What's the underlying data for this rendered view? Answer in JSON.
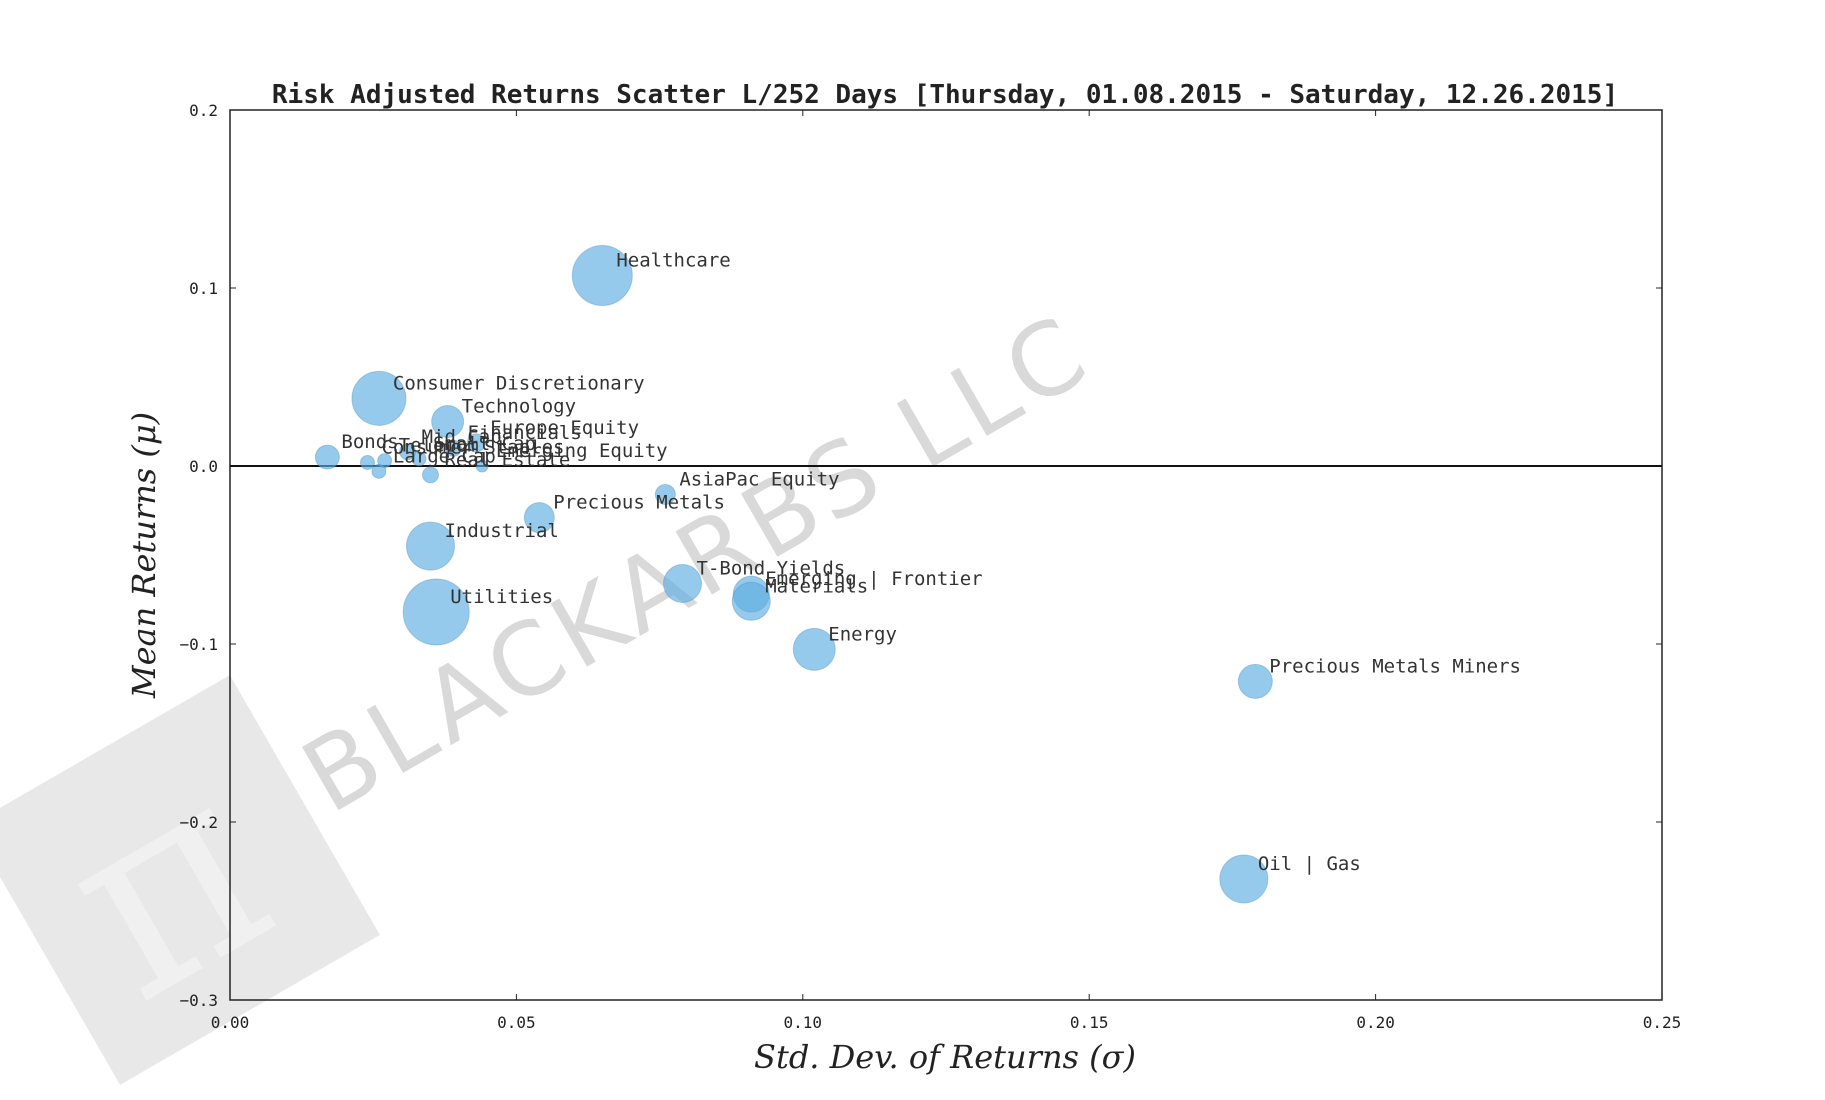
{
  "chart_data": {
    "type": "scatter",
    "title": "Risk Adjusted Returns Scatter L/252 Days [Thursday, 01.08.2015 - Saturday, 12.26.2015]",
    "xlabel": "Std.  Dev.  of  Returns     (σ)",
    "ylabel": "Mean  Returns    (μ)",
    "xlim": [
      0.0,
      0.25
    ],
    "ylim": [
      -0.3,
      0.2
    ],
    "xticks": [
      "0.00",
      "0.05",
      "0.10",
      "0.15",
      "0.20",
      "0.25"
    ],
    "xtick_values": [
      0.0,
      0.05,
      0.1,
      0.15,
      0.2,
      0.25
    ],
    "yticks": [
      "0.2",
      "0.1",
      "0.0",
      "−0.1",
      "−0.2",
      "−0.3"
    ],
    "ytick_values": [
      0.2,
      0.1,
      0.0,
      -0.1,
      -0.2,
      -0.3
    ],
    "zero_line": true,
    "grid": false,
    "marker_color": "#5dade2",
    "watermark": "BLACKARBS LLC",
    "points": [
      {
        "label": "Healthcare",
        "x": 0.065,
        "y": 0.107,
        "size": 30
      },
      {
        "label": "Consumer Discretionary",
        "x": 0.026,
        "y": 0.038,
        "size": 27
      },
      {
        "label": "Technology",
        "x": 0.038,
        "y": 0.025,
        "size": 16
      },
      {
        "label": "Europe Equity",
        "x": 0.043,
        "y": 0.013,
        "size": 9
      },
      {
        "label": "Financials",
        "x": 0.039,
        "y": 0.01,
        "size": 8
      },
      {
        "label": "Bonds",
        "x": 0.017,
        "y": 0.005,
        "size": 12
      },
      {
        "label": "Mid Cap",
        "x": 0.031,
        "y": 0.008,
        "size": 8
      },
      {
        "label": "Consumer Staples",
        "x": 0.024,
        "y": 0.002,
        "size": 7
      },
      {
        "label": "Telecom",
        "x": 0.027,
        "y": 0.003,
        "size": 7
      },
      {
        "label": "Small Cap",
        "x": 0.033,
        "y": 0.004,
        "size": 7
      },
      {
        "label": "Emerging Equity",
        "x": 0.044,
        "y": 0.0,
        "size": 6
      },
      {
        "label": "Large Cap",
        "x": 0.026,
        "y": -0.003,
        "size": 7
      },
      {
        "label": "Real Estate",
        "x": 0.035,
        "y": -0.005,
        "size": 8
      },
      {
        "label": "AsiaPac Equity",
        "x": 0.076,
        "y": -0.016,
        "size": 10
      },
      {
        "label": "Precious Metals",
        "x": 0.054,
        "y": -0.029,
        "size": 15
      },
      {
        "label": "Industrial",
        "x": 0.035,
        "y": -0.045,
        "size": 24
      },
      {
        "label": "T-Bond Yields",
        "x": 0.079,
        "y": -0.066,
        "size": 19
      },
      {
        "label": "Emerging | Frontier",
        "x": 0.091,
        "y": -0.072,
        "size": 18
      },
      {
        "label": "Materials",
        "x": 0.091,
        "y": -0.076,
        "size": 19
      },
      {
        "label": "Utilities",
        "x": 0.036,
        "y": -0.082,
        "size": 33
      },
      {
        "label": "Energy",
        "x": 0.102,
        "y": -0.103,
        "size": 21
      },
      {
        "label": "Precious Metals Miners",
        "x": 0.179,
        "y": -0.121,
        "size": 17
      },
      {
        "label": "Oil | Gas",
        "x": 0.177,
        "y": -0.232,
        "size": 24
      }
    ]
  }
}
